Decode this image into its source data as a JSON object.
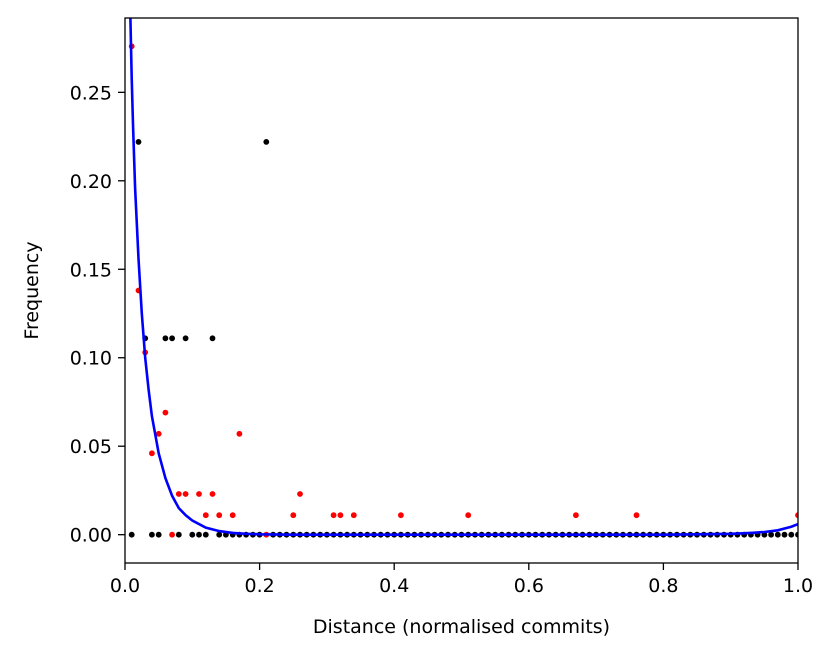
{
  "chart_data": {
    "type": "scatter",
    "title": "",
    "xlabel": "Distance (normalised commits)",
    "ylabel": "Frequency",
    "xlim": [
      0.0,
      1.0
    ],
    "ylim": [
      -0.016,
      0.292
    ],
    "grid": false,
    "legend": "none",
    "x_ticks": [
      {
        "value": 0.0,
        "label": "0.0"
      },
      {
        "value": 0.2,
        "label": "0.2"
      },
      {
        "value": 0.4,
        "label": "0.4"
      },
      {
        "value": 0.6,
        "label": "0.6"
      },
      {
        "value": 0.8,
        "label": "0.8"
      },
      {
        "value": 1.0,
        "label": "1.0"
      }
    ],
    "y_ticks": [
      {
        "value": 0.0,
        "label": "0.00"
      },
      {
        "value": 0.05,
        "label": "0.05"
      },
      {
        "value": 0.1,
        "label": "0.10"
      },
      {
        "value": 0.15,
        "label": "0.15"
      },
      {
        "value": 0.2,
        "label": "0.20"
      },
      {
        "value": 0.25,
        "label": "0.25"
      }
    ],
    "series": [
      {
        "color": "#000000",
        "kind": "points",
        "points": [
          [
            0.01,
            0.0
          ],
          [
            0.02,
            0.222
          ],
          [
            0.03,
            0.111
          ],
          [
            0.04,
            0.0
          ],
          [
            0.05,
            0.0
          ],
          [
            0.06,
            0.111
          ],
          [
            0.07,
            0.111
          ],
          [
            0.08,
            0.0
          ],
          [
            0.09,
            0.111
          ],
          [
            0.1,
            0.0
          ],
          [
            0.11,
            0.0
          ],
          [
            0.12,
            0.0
          ],
          [
            0.13,
            0.111
          ],
          [
            0.14,
            0.0
          ],
          [
            0.15,
            0.0
          ],
          [
            0.16,
            0.0
          ],
          [
            0.17,
            0.0
          ],
          [
            0.18,
            0.0
          ],
          [
            0.19,
            0.0
          ],
          [
            0.2,
            0.0
          ],
          [
            0.21,
            0.222
          ],
          [
            0.22,
            0.0
          ],
          [
            0.23,
            0.0
          ],
          [
            0.24,
            0.0
          ],
          [
            0.25,
            0.0
          ],
          [
            0.26,
            0.0
          ],
          [
            0.27,
            0.0
          ],
          [
            0.28,
            0.0
          ],
          [
            0.29,
            0.0
          ],
          [
            0.3,
            0.0
          ],
          [
            0.31,
            0.0
          ],
          [
            0.32,
            0.0
          ],
          [
            0.33,
            0.0
          ],
          [
            0.34,
            0.0
          ],
          [
            0.35,
            0.0
          ],
          [
            0.36,
            0.0
          ],
          [
            0.37,
            0.0
          ],
          [
            0.38,
            0.0
          ],
          [
            0.39,
            0.0
          ],
          [
            0.4,
            0.0
          ],
          [
            0.41,
            0.0
          ],
          [
            0.42,
            0.0
          ],
          [
            0.43,
            0.0
          ],
          [
            0.44,
            0.0
          ],
          [
            0.45,
            0.0
          ],
          [
            0.46,
            0.0
          ],
          [
            0.47,
            0.0
          ],
          [
            0.48,
            0.0
          ],
          [
            0.49,
            0.0
          ],
          [
            0.5,
            0.0
          ],
          [
            0.51,
            0.0
          ],
          [
            0.52,
            0.0
          ],
          [
            0.53,
            0.0
          ],
          [
            0.54,
            0.0
          ],
          [
            0.55,
            0.0
          ],
          [
            0.56,
            0.0
          ],
          [
            0.57,
            0.0
          ],
          [
            0.58,
            0.0
          ],
          [
            0.59,
            0.0
          ],
          [
            0.6,
            0.0
          ],
          [
            0.61,
            0.0
          ],
          [
            0.62,
            0.0
          ],
          [
            0.63,
            0.0
          ],
          [
            0.64,
            0.0
          ],
          [
            0.65,
            0.0
          ],
          [
            0.66,
            0.0
          ],
          [
            0.67,
            0.0
          ],
          [
            0.68,
            0.0
          ],
          [
            0.69,
            0.0
          ],
          [
            0.7,
            0.0
          ],
          [
            0.71,
            0.0
          ],
          [
            0.72,
            0.0
          ],
          [
            0.73,
            0.0
          ],
          [
            0.74,
            0.0
          ],
          [
            0.75,
            0.0
          ],
          [
            0.76,
            0.0
          ],
          [
            0.77,
            0.0
          ],
          [
            0.78,
            0.0
          ],
          [
            0.79,
            0.0
          ],
          [
            0.8,
            0.0
          ],
          [
            0.81,
            0.0
          ],
          [
            0.82,
            0.0
          ],
          [
            0.83,
            0.0
          ],
          [
            0.84,
            0.0
          ],
          [
            0.85,
            0.0
          ],
          [
            0.86,
            0.0
          ],
          [
            0.87,
            0.0
          ],
          [
            0.88,
            0.0
          ],
          [
            0.89,
            0.0
          ],
          [
            0.9,
            0.0
          ],
          [
            0.91,
            0.0
          ],
          [
            0.92,
            0.0
          ],
          [
            0.93,
            0.0
          ],
          [
            0.94,
            0.0
          ],
          [
            0.95,
            0.0
          ],
          [
            0.96,
            0.0
          ],
          [
            0.97,
            0.0
          ],
          [
            0.98,
            0.0
          ],
          [
            0.99,
            0.0
          ],
          [
            1.0,
            0.0
          ]
        ]
      },
      {
        "color": "#ff0000",
        "kind": "points",
        "points": [
          [
            0.01,
            0.276
          ],
          [
            0.02,
            0.138
          ],
          [
            0.03,
            0.103
          ],
          [
            0.04,
            0.046
          ],
          [
            0.05,
            0.057
          ],
          [
            0.06,
            0.069
          ],
          [
            0.07,
            0.0
          ],
          [
            0.08,
            0.023
          ],
          [
            0.09,
            0.023
          ],
          [
            0.11,
            0.023
          ],
          [
            0.12,
            0.011
          ],
          [
            0.13,
            0.023
          ],
          [
            0.14,
            0.011
          ],
          [
            0.16,
            0.011
          ],
          [
            0.17,
            0.057
          ],
          [
            0.21,
            0.0
          ],
          [
            0.25,
            0.011
          ],
          [
            0.26,
            0.023
          ],
          [
            0.31,
            0.011
          ],
          [
            0.32,
            0.011
          ],
          [
            0.34,
            0.011
          ],
          [
            0.41,
            0.011
          ],
          [
            0.51,
            0.011
          ],
          [
            0.67,
            0.011
          ],
          [
            0.76,
            0.011
          ],
          [
            1.0,
            0.011
          ]
        ]
      },
      {
        "color": "#0000ff",
        "kind": "line",
        "points": [
          [
            0.008,
            0.292
          ],
          [
            0.01,
            0.258
          ],
          [
            0.012,
            0.23
          ],
          [
            0.015,
            0.196
          ],
          [
            0.02,
            0.156
          ],
          [
            0.025,
            0.125
          ],
          [
            0.03,
            0.1
          ],
          [
            0.035,
            0.082
          ],
          [
            0.04,
            0.067
          ],
          [
            0.05,
            0.046
          ],
          [
            0.06,
            0.032
          ],
          [
            0.07,
            0.022
          ],
          [
            0.08,
            0.015
          ],
          [
            0.09,
            0.011
          ],
          [
            0.1,
            0.008
          ],
          [
            0.12,
            0.004
          ],
          [
            0.14,
            0.002
          ],
          [
            0.16,
            0.001
          ],
          [
            0.18,
            0.0005
          ],
          [
            0.2,
            0.0002
          ],
          [
            0.25,
            0.0
          ],
          [
            0.3,
            0.0
          ],
          [
            0.4,
            0.0
          ],
          [
            0.5,
            0.0
          ],
          [
            0.6,
            0.0
          ],
          [
            0.7,
            0.0
          ],
          [
            0.8,
            0.0
          ],
          [
            0.85,
            0.0002
          ],
          [
            0.9,
            0.0005
          ],
          [
            0.93,
            0.001
          ],
          [
            0.95,
            0.0015
          ],
          [
            0.97,
            0.0025
          ],
          [
            0.98,
            0.0035
          ],
          [
            0.99,
            0.0045
          ],
          [
            1.0,
            0.006
          ]
        ]
      }
    ]
  }
}
